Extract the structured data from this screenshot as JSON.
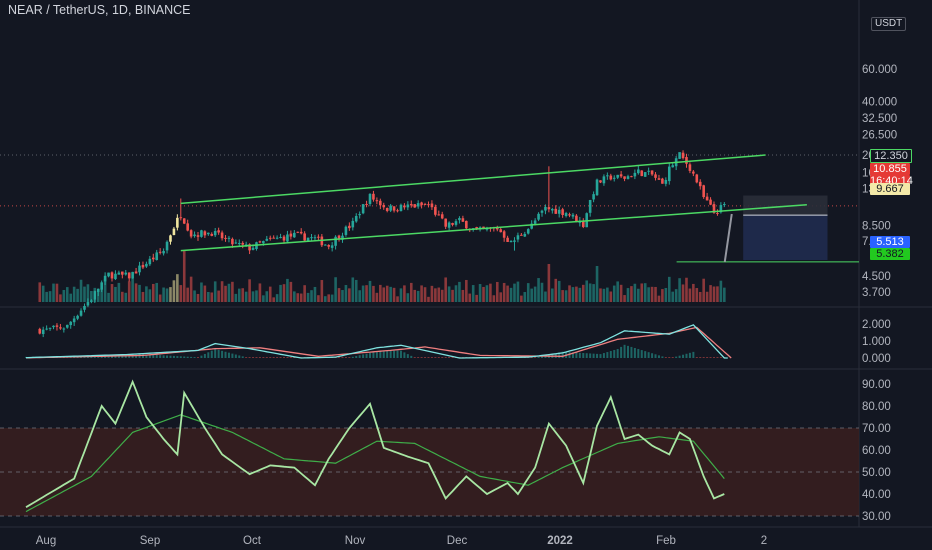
{
  "header": {
    "symbol_title": "NEAR / TetherUS, 1D, BINANCE",
    "currency_badge": "USDT"
  },
  "colors": {
    "background": "#131722",
    "up_candle": "#26a69a",
    "down_candle": "#ef5350",
    "highlight_candle": "#f0e6a0",
    "channel": "#4cd964",
    "rsi_line": "#a8e6a3",
    "rsi_ma": "#3fae49",
    "rsi_band": "#3a1f1f",
    "macd_line": "#7fe3e0",
    "signal_line": "#ef7f7f",
    "short_target_zone": "#1f2a4d",
    "short_stop_zone": "#2a2e39"
  },
  "price_axis": {
    "ticks": [
      "60.000",
      "40.000",
      "32.500",
      "26.500",
      "20.500",
      "16.500",
      "13.500",
      "8.500",
      "7.000",
      "4.500",
      "3.700"
    ],
    "labels": {
      "stop": "12.350",
      "last": "10.855",
      "countdown": "16:40:14",
      "entry": "9.667",
      "target": "5.513",
      "support": "5.382"
    },
    "scale": "log"
  },
  "macd_axis": {
    "ticks": [
      "2.000",
      "1.000",
      "0.000"
    ]
  },
  "rsi_axis": {
    "ticks": [
      "90.00",
      "80.00",
      "70.00",
      "60.00",
      "50.00",
      "40.00",
      "30.00"
    ]
  },
  "time_axis": {
    "ticks": [
      "Aug",
      "Sep",
      "Oct",
      "Nov",
      "Dec",
      "2022",
      "Feb",
      "2"
    ]
  },
  "chart_data": {
    "type": "candlestick",
    "title": "NEAR / TetherUS, 1D, BINANCE",
    "x_range": [
      "2021-07-22",
      "2022-02-12"
    ],
    "y_scale": "log",
    "anchors_close": [
      [
        "2021-07-28",
        2.3
      ],
      [
        "2021-08-03",
        2.4
      ],
      [
        "2021-08-10",
        3.4
      ],
      [
        "2021-08-15",
        4.6
      ],
      [
        "2021-08-21",
        4.5
      ],
      [
        "2021-08-26",
        5.3
      ],
      [
        "2021-08-31",
        6.2
      ],
      [
        "2021-09-05",
        9.8
      ],
      [
        "2021-09-08",
        7.6
      ],
      [
        "2021-09-14",
        7.8
      ],
      [
        "2021-09-20",
        6.8
      ],
      [
        "2021-09-25",
        6.4
      ],
      [
        "2021-10-01",
        7.1
      ],
      [
        "2021-10-08",
        7.5
      ],
      [
        "2021-10-14",
        7.2
      ],
      [
        "2021-10-18",
        6.6
      ],
      [
        "2021-10-25",
        8.7
      ],
      [
        "2021-10-30",
        12.2
      ],
      [
        "2021-11-04",
        10.5
      ],
      [
        "2021-11-11",
        10.8
      ],
      [
        "2021-11-16",
        11.0
      ],
      [
        "2021-11-21",
        8.4
      ],
      [
        "2021-11-25",
        9.0
      ],
      [
        "2021-11-30",
        7.9
      ],
      [
        "2021-12-06",
        8.2
      ],
      [
        "2021-12-10",
        6.8
      ],
      [
        "2021-12-16",
        8.5
      ],
      [
        "2021-12-20",
        10.5
      ],
      [
        "2021-12-26",
        10.0
      ],
      [
        "2021-12-31",
        8.6
      ],
      [
        "2022-01-04",
        14.5
      ],
      [
        "2022-01-08",
        15.6
      ],
      [
        "2022-01-12",
        15.4
      ],
      [
        "2022-01-16",
        16.6
      ],
      [
        "2022-01-20",
        16.0
      ],
      [
        "2022-01-23",
        14.1
      ],
      [
        "2022-01-25",
        17.2
      ],
      [
        "2022-01-28",
        20.5
      ],
      [
        "2022-01-31",
        17.5
      ],
      [
        "2022-02-04",
        12.0
      ],
      [
        "2022-02-07",
        10.0
      ],
      [
        "2022-02-10",
        10.855
      ]
    ],
    "spikes_high": [
      [
        "2021-09-05",
        11.9
      ],
      [
        "2021-12-21",
        17.8
      ],
      [
        "2022-01-28",
        20.9
      ]
    ],
    "spikes_low": [
      [
        "2021-12-11",
        6.2
      ]
    ],
    "channel": {
      "upper": [
        [
          "2021-09-05",
          11.2
        ],
        [
          "2022-02-22",
          20.5
        ]
      ],
      "lower": [
        [
          "2021-09-05",
          6.2
        ],
        [
          "2022-03-06",
          11.0
        ]
      ]
    },
    "short_position": {
      "stop": 12.35,
      "entry": 9.667,
      "target": 5.513,
      "start": "2022-02-12",
      "end": "2022-03-12"
    },
    "support_line": 5.382,
    "macd": {
      "ylim": [
        0,
        2.2
      ],
      "macd_anchors": [
        [
          "2021-07-22",
          0.02
        ],
        [
          "2021-08-20",
          0.2
        ],
        [
          "2021-09-10",
          0.45
        ],
        [
          "2021-09-15",
          0.85
        ],
        [
          "2021-09-25",
          0.55
        ],
        [
          "2021-10-10",
          0.0
        ],
        [
          "2021-10-20",
          0.05
        ],
        [
          "2021-11-01",
          0.6
        ],
        [
          "2021-11-08",
          0.75
        ],
        [
          "2021-11-25",
          0.0
        ],
        [
          "2021-12-15",
          0.05
        ],
        [
          "2021-12-25",
          0.3
        ],
        [
          "2022-01-05",
          0.9
        ],
        [
          "2022-01-12",
          1.6
        ],
        [
          "2022-01-25",
          1.4
        ],
        [
          "2022-02-01",
          1.95
        ],
        [
          "2022-02-10",
          0.0
        ]
      ],
      "signal_anchors": [
        [
          "2021-07-22",
          0.01
        ],
        [
          "2021-08-25",
          0.15
        ],
        [
          "2021-09-15",
          0.55
        ],
        [
          "2021-09-28",
          0.6
        ],
        [
          "2021-10-15",
          0.1
        ],
        [
          "2021-11-05",
          0.45
        ],
        [
          "2021-11-15",
          0.65
        ],
        [
          "2021-12-01",
          0.15
        ],
        [
          "2021-12-25",
          0.1
        ],
        [
          "2022-01-10",
          1.1
        ],
        [
          "2022-01-25",
          1.45
        ],
        [
          "2022-02-02",
          1.8
        ],
        [
          "2022-02-12",
          0.0
        ]
      ]
    },
    "rsi": {
      "ylim": [
        25,
        95
      ],
      "band": [
        30,
        70
      ],
      "midline": 50,
      "rsi_anchors": [
        [
          "2021-07-22",
          34
        ],
        [
          "2021-08-05",
          47
        ],
        [
          "2021-08-13",
          80
        ],
        [
          "2021-08-17",
          72
        ],
        [
          "2021-08-22",
          91
        ],
        [
          "2021-08-26",
          75
        ],
        [
          "2021-08-31",
          65
        ],
        [
          "2021-09-04",
          58
        ],
        [
          "2021-09-06",
          86
        ],
        [
          "2021-09-12",
          70
        ],
        [
          "2021-09-17",
          58
        ],
        [
          "2021-09-25",
          49
        ],
        [
          "2021-10-01",
          53
        ],
        [
          "2021-10-08",
          52
        ],
        [
          "2021-10-14",
          44
        ],
        [
          "2021-10-18",
          56
        ],
        [
          "2021-10-24",
          70
        ],
        [
          "2021-10-30",
          81
        ],
        [
          "2021-11-03",
          61
        ],
        [
          "2021-11-10",
          57
        ],
        [
          "2021-11-16",
          54
        ],
        [
          "2021-11-21",
          38
        ],
        [
          "2021-11-27",
          48
        ],
        [
          "2021-12-03",
          40
        ],
        [
          "2021-12-09",
          45
        ],
        [
          "2021-12-12",
          40
        ],
        [
          "2021-12-17",
          52
        ],
        [
          "2021-12-21",
          72
        ],
        [
          "2021-12-26",
          62
        ],
        [
          "2021-12-31",
          45
        ],
        [
          "2022-01-04",
          71
        ],
        [
          "2022-01-08",
          84
        ],
        [
          "2022-01-12",
          65
        ],
        [
          "2022-01-16",
          67
        ],
        [
          "2022-01-20",
          62
        ],
        [
          "2022-01-25",
          58
        ],
        [
          "2022-01-28",
          68
        ],
        [
          "2022-01-31",
          65
        ],
        [
          "2022-02-04",
          48
        ],
        [
          "2022-02-07",
          38
        ],
        [
          "2022-02-10",
          40
        ]
      ],
      "ma_anchors": [
        [
          "2021-07-22",
          32
        ],
        [
          "2021-08-10",
          48
        ],
        [
          "2021-08-22",
          68
        ],
        [
          "2021-09-05",
          76
        ],
        [
          "2021-09-20",
          68
        ],
        [
          "2021-10-05",
          56
        ],
        [
          "2021-10-20",
          54
        ],
        [
          "2021-11-01",
          64
        ],
        [
          "2021-11-12",
          63
        ],
        [
          "2021-12-01",
          48
        ],
        [
          "2021-12-15",
          44
        ],
        [
          "2021-12-25",
          52
        ],
        [
          "2022-01-10",
          63
        ],
        [
          "2022-01-22",
          66
        ],
        [
          "2022-02-01",
          64
        ],
        [
          "2022-02-10",
          47
        ]
      ]
    }
  }
}
